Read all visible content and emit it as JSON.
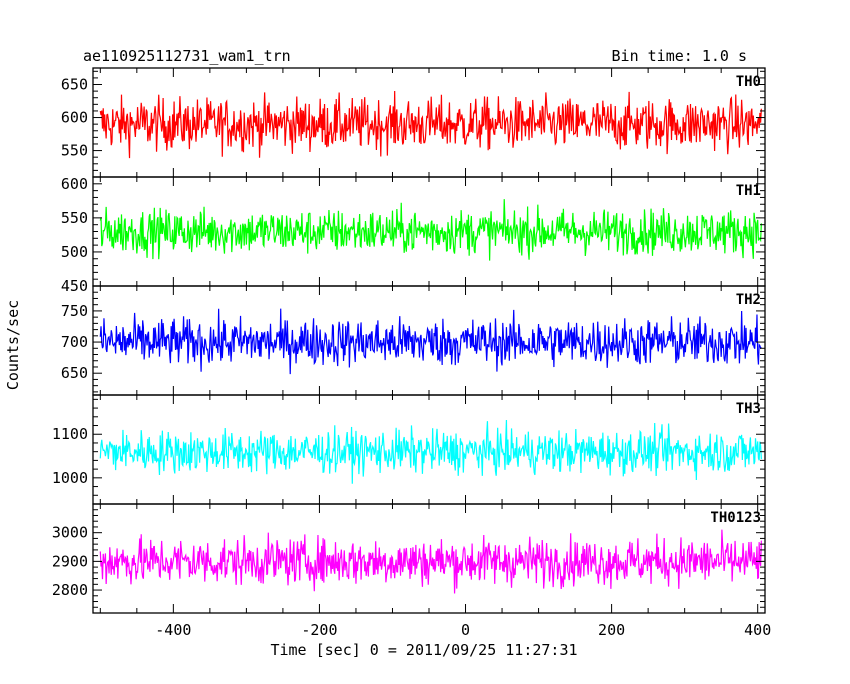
{
  "header": {
    "title": "ae110925112731_wam1_trn",
    "bin_time": "Bin time: 1.0 s"
  },
  "axes": {
    "xlabel": "Time [sec] 0 = 2011/09/25 11:27:31",
    "ylabel": "Counts/sec"
  },
  "chart_data": {
    "type": "line",
    "x_range": [
      -510,
      410
    ],
    "x_tick_labels": [
      "-400",
      "-200",
      "0",
      "200",
      "400"
    ],
    "x_ticks": [
      -400,
      -200,
      0,
      200,
      400
    ],
    "panels": [
      {
        "name": "TH0",
        "color": "#ff0000",
        "ylim": [
          510,
          675
        ],
        "mean": 590,
        "spread": 36,
        "yticks": [
          550,
          600,
          650
        ],
        "ytick_labels": [
          "550",
          "600",
          "650"
        ]
      },
      {
        "name": "TH1",
        "color": "#00ff00",
        "ylim": [
          450,
          610
        ],
        "mean": 530,
        "spread": 30,
        "yticks": [
          450,
          500,
          550,
          600
        ],
        "ytick_labels": [
          "450",
          "500",
          "550",
          "600"
        ]
      },
      {
        "name": "TH2",
        "color": "#0000ff",
        "ylim": [
          615,
          790
        ],
        "mean": 700,
        "spread": 35,
        "yticks": [
          650,
          700,
          750
        ],
        "ytick_labels": [
          "650",
          "700",
          "750"
        ]
      },
      {
        "name": "TH3",
        "color": "#00ffff",
        "ylim": [
          940,
          1190
        ],
        "mean": 1060,
        "spread": 45,
        "yticks": [
          1000,
          1100
        ],
        "ytick_labels": [
          "1000",
          "1100"
        ]
      },
      {
        "name": "TH0123",
        "color": "#ff00ff",
        "ylim": [
          2720,
          3100
        ],
        "mean": 2900,
        "spread": 75,
        "yticks": [
          2800,
          2900,
          3000
        ],
        "ytick_labels": [
          "2800",
          "2900",
          "3000"
        ]
      }
    ]
  }
}
